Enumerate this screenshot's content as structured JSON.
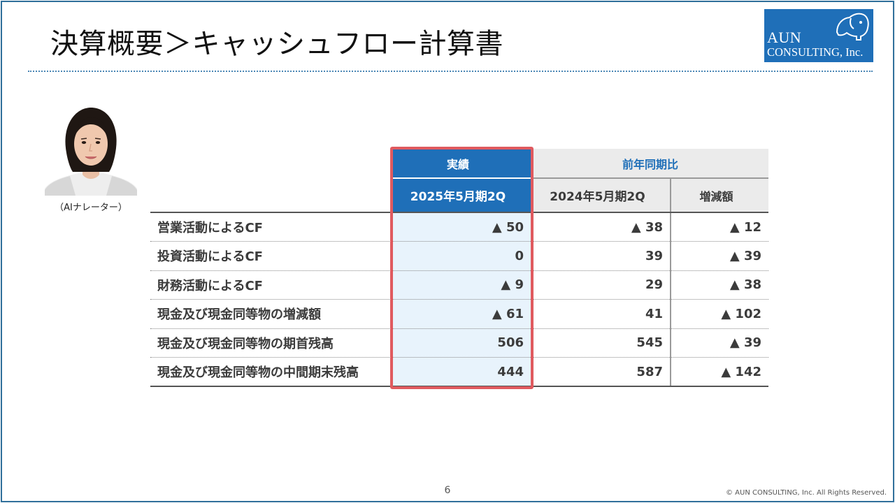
{
  "slide": {
    "title": "決算概要＞キャッシュフロー計算書",
    "page_number": "6",
    "copyright": "© AUN CONSULTING, Inc. All Rights Reserved."
  },
  "logo": {
    "line1": "AUN",
    "line2": "CONSULTING, Inc."
  },
  "narrator": {
    "caption": "（AIナレーター）"
  },
  "table": {
    "header_actual": "実績",
    "header_yoy": "前年同期比",
    "col_actual": "2025年5月期2Q",
    "col_prev": "2024年5月期2Q",
    "col_diff": "増減額",
    "rows": [
      {
        "label": "営業活動によるCF",
        "actual": "▲ 50",
        "prev": "▲ 38",
        "diff": "▲ 12"
      },
      {
        "label": "投資活動によるCF",
        "actual": "0",
        "prev": "39",
        "diff": "▲ 39"
      },
      {
        "label": "財務活動によるCF",
        "actual": "▲ 9",
        "prev": "29",
        "diff": "▲ 38"
      },
      {
        "label": "現金及び現金同等物の増減額",
        "actual": "▲ 61",
        "prev": "41",
        "diff": "▲ 102"
      },
      {
        "label": "現金及び現金同等物の期首残高",
        "actual": "506",
        "prev": "545",
        "diff": "▲ 39"
      },
      {
        "label": "現金及び現金同等物の中間期末残高",
        "actual": "444",
        "prev": "587",
        "diff": "▲ 142"
      }
    ]
  },
  "colors": {
    "accent_blue": "#1f6fb8",
    "highlight_red": "#e05a5f",
    "actual_cell_bg": "#e8f3fc",
    "header_gray": "#ebebeb"
  }
}
